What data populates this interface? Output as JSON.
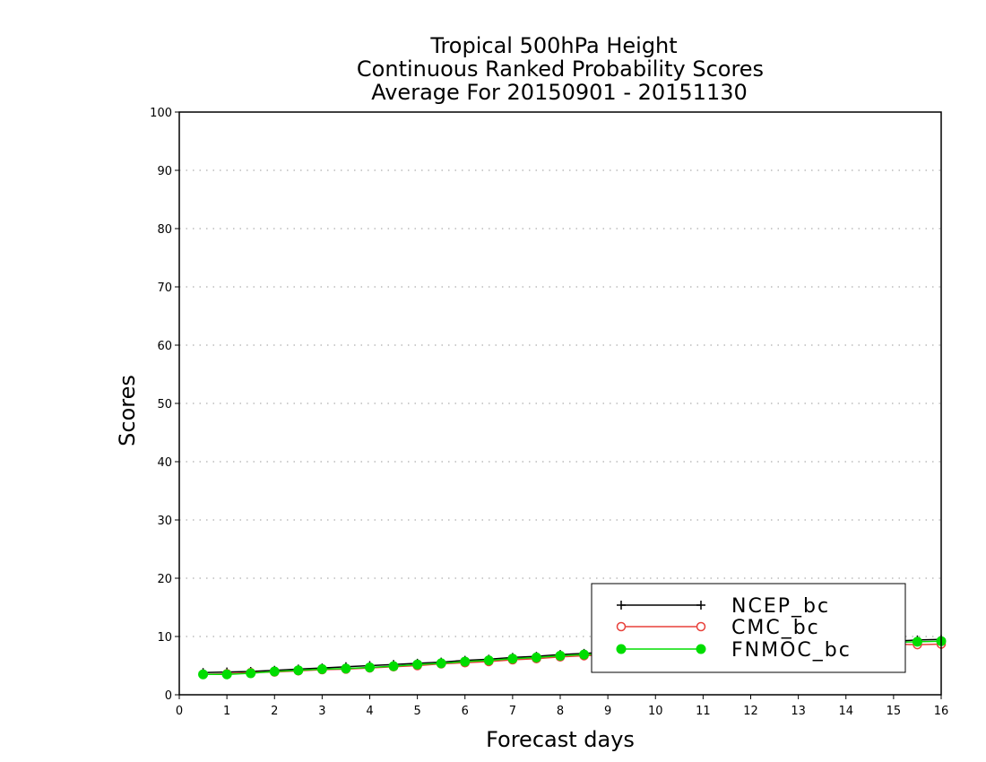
{
  "chart_data": {
    "type": "line",
    "title_lines": [
      "Tropical 500hPa Height",
      "Continuous Ranked Probability Scores",
      "Average For 20150901 - 20151130"
    ],
    "xlabel": "Forecast days",
    "ylabel": "Scores",
    "xlim": [
      0,
      16
    ],
    "ylim": [
      0,
      100
    ],
    "xticks": [
      "0",
      "1",
      "2",
      "3",
      "4",
      "5",
      "6",
      "7",
      "8",
      "9",
      "10",
      "11",
      "12",
      "13",
      "14",
      "15",
      "16"
    ],
    "yticks": [
      "0",
      "10",
      "20",
      "30",
      "40",
      "50",
      "60",
      "70",
      "80",
      "90",
      "100"
    ],
    "grid": "horizontal dotted",
    "legend_position": "bottom-right",
    "x": [
      0.5,
      1,
      1.5,
      2,
      2.5,
      3,
      3.5,
      4,
      4.5,
      5,
      5.5,
      6,
      6.5,
      7,
      7.5,
      8,
      8.5,
      9,
      9.5,
      10,
      10.5,
      11,
      11.5,
      12,
      12.5,
      13,
      13.5,
      14,
      14.5,
      15,
      15.5,
      16
    ],
    "series": [
      {
        "name": "NCEP_bc",
        "color": "#000000",
        "marker": "plus",
        "values": [
          3.8,
          3.9,
          4.0,
          4.2,
          4.4,
          4.6,
          4.8,
          5.0,
          5.2,
          5.4,
          5.6,
          5.9,
          6.1,
          6.4,
          6.6,
          6.9,
          7.1,
          7.3,
          7.5,
          7.7,
          7.8,
          8.0,
          8.2,
          8.3,
          8.5,
          8.6,
          8.8,
          8.9,
          9.1,
          9.2,
          9.4,
          9.5
        ]
      },
      {
        "name": "CMC_bc",
        "color": "#e8403a",
        "marker": "open-circle",
        "values": [
          3.5,
          3.6,
          3.8,
          3.9,
          4.1,
          4.3,
          4.4,
          4.6,
          4.8,
          5.0,
          5.3,
          5.5,
          5.7,
          6.0,
          6.2,
          6.5,
          6.7,
          6.9,
          7.1,
          7.3,
          7.4,
          7.6,
          7.8,
          7.9,
          8.0,
          8.1,
          8.3,
          8.4,
          8.6,
          8.7,
          8.6,
          8.7
        ]
      },
      {
        "name": "FNMOC_bc",
        "color": "#00dd00",
        "marker": "filled-circle",
        "values": [
          3.5,
          3.5,
          3.7,
          4.0,
          4.2,
          4.4,
          4.5,
          4.7,
          4.9,
          5.2,
          5.4,
          5.7,
          5.9,
          6.2,
          6.4,
          6.7,
          6.9,
          7.1,
          7.3,
          7.5,
          7.6,
          7.8,
          8.0,
          8.1,
          8.3,
          8.4,
          8.6,
          8.7,
          8.9,
          9.0,
          9.1,
          9.2
        ]
      }
    ]
  }
}
